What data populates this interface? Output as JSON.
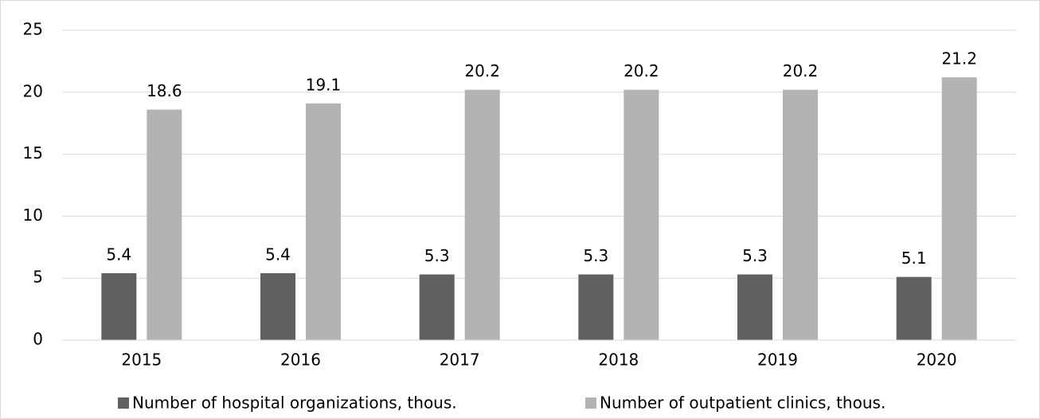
{
  "chart_data": {
    "type": "bar",
    "categories": [
      "2015",
      "2016",
      "2017",
      "2018",
      "2019",
      "2020"
    ],
    "series": [
      {
        "name": "Number of hospital organizations, thous.",
        "color": "#606060",
        "values": [
          5.4,
          5.4,
          5.3,
          5.3,
          5.3,
          5.1
        ]
      },
      {
        "name": "Number of outpatient clinics, thous.",
        "color": "#b3b3b3",
        "values": [
          18.6,
          19.1,
          20.2,
          20.2,
          20.2,
          21.2
        ]
      }
    ],
    "ylim": [
      0,
      25
    ],
    "yticks": [
      0,
      5,
      10,
      15,
      20,
      25
    ],
    "grid": true,
    "legend": "bottom"
  }
}
